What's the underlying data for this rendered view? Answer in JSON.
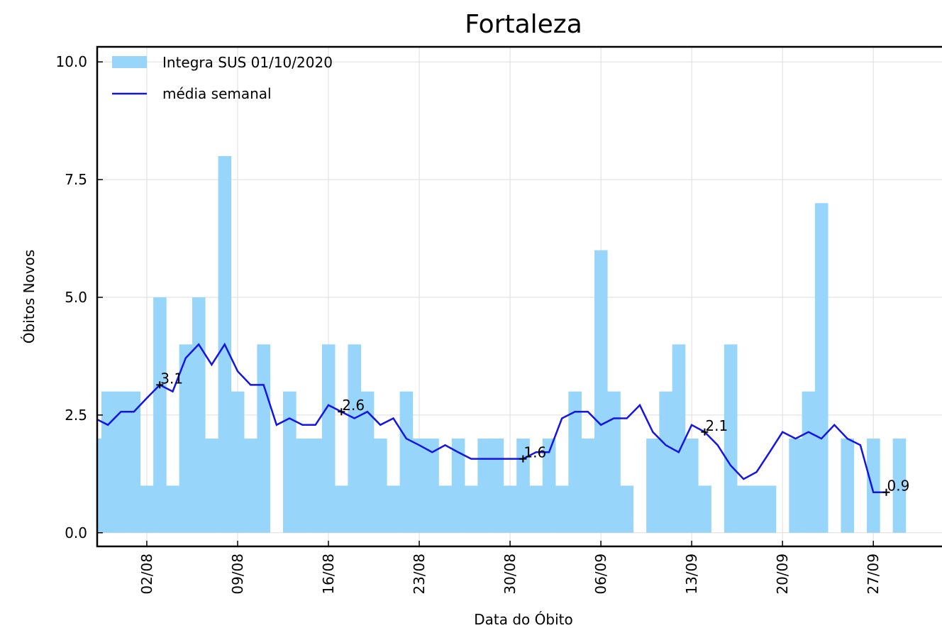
{
  "chart_data": {
    "type": "bar",
    "title": "Fortaleza",
    "xlabel": "Data do Óbito",
    "ylabel": "Óbitos Novos",
    "categories": [
      null,
      null,
      null,
      null,
      "02/08",
      null,
      null,
      null,
      null,
      null,
      null,
      "09/08",
      null,
      null,
      null,
      null,
      null,
      null,
      "16/08",
      null,
      null,
      null,
      null,
      null,
      null,
      "23/08",
      null,
      null,
      null,
      null,
      null,
      null,
      "30/08",
      null,
      null,
      null,
      null,
      null,
      null,
      "06/09",
      null,
      null,
      null,
      null,
      null,
      null,
      "13/09",
      null,
      null,
      null,
      null,
      null,
      null,
      "20/09",
      null,
      null,
      null,
      null,
      null,
      null,
      "27/09",
      null,
      null
    ],
    "series": [
      {
        "name": "Integra SUS 01/10/2020",
        "type": "bar",
        "color": "#97d5fa",
        "values": [
          2,
          3,
          3,
          3,
          1,
          5,
          1,
          4,
          5,
          2,
          8,
          3,
          2,
          4,
          0,
          3,
          2,
          2,
          4,
          1,
          4,
          3,
          2,
          1,
          3,
          2,
          2,
          1,
          2,
          1,
          2,
          2,
          1,
          2,
          1,
          2,
          1,
          3,
          2,
          6,
          3,
          1,
          0,
          2,
          3,
          4,
          2,
          1,
          0,
          4,
          1,
          1,
          1,
          0,
          2,
          3,
          7,
          0,
          2,
          0,
          2,
          0,
          2
        ]
      },
      {
        "name": "média  semanal",
        "type": "line",
        "color": "#1414e6",
        "values": [
          2.43,
          2.29,
          2.57,
          2.57,
          2.86,
          3.14,
          3.0,
          3.71,
          4.0,
          3.57,
          4.0,
          3.43,
          3.14,
          3.14,
          2.29,
          2.43,
          2.29,
          2.29,
          2.71,
          2.57,
          2.43,
          2.57,
          2.29,
          2.43,
          2.0,
          1.86,
          1.71,
          1.86,
          1.71,
          1.57,
          1.57,
          1.57,
          1.57,
          1.57,
          1.71,
          1.71,
          2.43,
          2.57,
          2.57,
          2.29,
          2.43,
          2.43,
          2.71,
          2.14,
          1.86,
          1.71,
          2.29,
          2.14,
          1.86,
          1.43,
          1.14,
          1.29,
          1.71,
          2.14,
          2.0,
          2.14,
          2.0,
          2.29,
          2.0,
          1.86,
          0.86,
          0.86,
          null
        ],
        "value_labels": [
          null,
          null,
          null,
          null,
          null,
          "3.1",
          null,
          null,
          null,
          null,
          null,
          null,
          null,
          null,
          null,
          null,
          null,
          null,
          null,
          "2.6",
          null,
          null,
          null,
          null,
          null,
          null,
          null,
          null,
          null,
          null,
          null,
          null,
          null,
          "1.6",
          null,
          null,
          null,
          null,
          null,
          null,
          null,
          null,
          null,
          null,
          null,
          null,
          null,
          "2.1",
          null,
          null,
          null,
          null,
          null,
          null,
          null,
          null,
          null,
          null,
          null,
          null,
          null,
          "0.9",
          null
        ]
      }
    ],
    "ylim": [
      -0.29,
      10.32
    ],
    "yticks": [
      {
        "value": 0,
        "label": "0.0"
      },
      2.5,
      {
        "value": 5,
        "label": "5.0"
      },
      7.5,
      {
        "value": 10,
        "label": "10.0"
      }
    ],
    "grid": true,
    "legend": "upper left"
  }
}
